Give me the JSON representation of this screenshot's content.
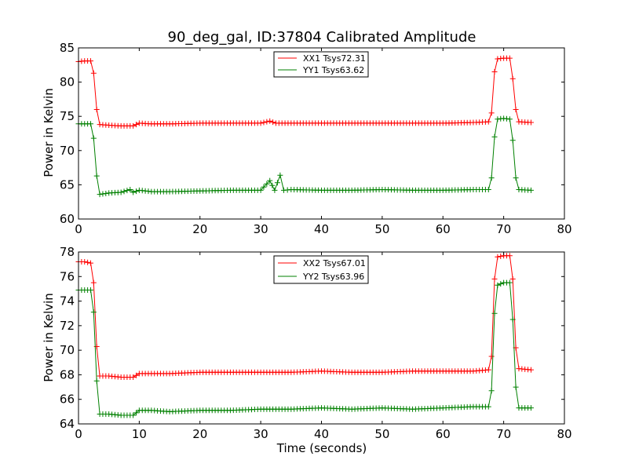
{
  "chart_data": [
    {
      "type": "line",
      "title": "90_deg_gal, ID:37804 Calibrated Amplitude",
      "xlabel": "",
      "ylabel": "Power in Kelvin",
      "xlim": [
        0,
        80
      ],
      "ylim": [
        60,
        85
      ],
      "xticks": [
        0,
        10,
        20,
        30,
        40,
        50,
        60,
        70,
        80
      ],
      "yticks": [
        60,
        65,
        70,
        75,
        80,
        85
      ],
      "grid": false,
      "legend_position": "top-center",
      "marker": "plus",
      "series": [
        {
          "name": "XX1 Tsys72.31",
          "color": "#ff0000",
          "points": [
            [
              0,
              83.0
            ],
            [
              1,
              83.1
            ],
            [
              2,
              83.1
            ],
            [
              2.5,
              81.3
            ],
            [
              3,
              76.0
            ],
            [
              3.5,
              73.8
            ],
            [
              5,
              73.7
            ],
            [
              7,
              73.6
            ],
            [
              9,
              73.6
            ],
            [
              10,
              74.0
            ],
            [
              12,
              73.9
            ],
            [
              15,
              73.9
            ],
            [
              20,
              74.0
            ],
            [
              25,
              74.0
            ],
            [
              30,
              74.0
            ],
            [
              31.5,
              74.3
            ],
            [
              32.5,
              74.0
            ],
            [
              35,
              74.0
            ],
            [
              40,
              74.0
            ],
            [
              45,
              74.0
            ],
            [
              50,
              74.0
            ],
            [
              55,
              74.0
            ],
            [
              60,
              74.0
            ],
            [
              65,
              74.1
            ],
            [
              67.5,
              74.2
            ],
            [
              68,
              75.5
            ],
            [
              68.5,
              81.5
            ],
            [
              69,
              83.4
            ],
            [
              70,
              83.5
            ],
            [
              71,
              83.5
            ],
            [
              71.5,
              80.5
            ],
            [
              72,
              76.0
            ],
            [
              72.5,
              74.2
            ],
            [
              74.5,
              74.1
            ]
          ]
        },
        {
          "name": "YY1 Tsys63.62",
          "color": "#008000",
          "points": [
            [
              0,
              73.9
            ],
            [
              1,
              73.9
            ],
            [
              2,
              73.9
            ],
            [
              2.5,
              71.8
            ],
            [
              3,
              66.3
            ],
            [
              3.5,
              63.6
            ],
            [
              5,
              63.8
            ],
            [
              7,
              63.9
            ],
            [
              8.5,
              64.3
            ],
            [
              9,
              63.9
            ],
            [
              10,
              64.2
            ],
            [
              12,
              64.0
            ],
            [
              15,
              64.0
            ],
            [
              20,
              64.1
            ],
            [
              25,
              64.2
            ],
            [
              30,
              64.2
            ],
            [
              31.5,
              65.6
            ],
            [
              32.3,
              64.2
            ],
            [
              33.2,
              66.4
            ],
            [
              33.8,
              64.2
            ],
            [
              35,
              64.3
            ],
            [
              40,
              64.2
            ],
            [
              45,
              64.2
            ],
            [
              50,
              64.3
            ],
            [
              55,
              64.2
            ],
            [
              60,
              64.2
            ],
            [
              65,
              64.3
            ],
            [
              67.5,
              64.3
            ],
            [
              68,
              66.0
            ],
            [
              68.5,
              72.0
            ],
            [
              69,
              74.6
            ],
            [
              70,
              74.7
            ],
            [
              71,
              74.6
            ],
            [
              71.5,
              71.5
            ],
            [
              72,
              66.0
            ],
            [
              72.5,
              64.3
            ],
            [
              74.5,
              64.2
            ]
          ]
        }
      ]
    },
    {
      "type": "line",
      "title": "",
      "xlabel": "Time (seconds)",
      "ylabel": "Power in Kelvin",
      "xlim": [
        0,
        80
      ],
      "ylim": [
        64,
        78
      ],
      "xticks": [
        0,
        10,
        20,
        30,
        40,
        50,
        60,
        70,
        80
      ],
      "yticks": [
        64,
        66,
        68,
        70,
        72,
        74,
        76,
        78
      ],
      "grid": false,
      "legend_position": "top-center",
      "marker": "plus",
      "series": [
        {
          "name": "XX2 Tsys67.01",
          "color": "#ff0000",
          "points": [
            [
              0,
              77.2
            ],
            [
              1,
              77.2
            ],
            [
              2,
              77.1
            ],
            [
              2.5,
              75.5
            ],
            [
              3,
              70.3
            ],
            [
              3.5,
              67.9
            ],
            [
              5,
              67.9
            ],
            [
              7,
              67.8
            ],
            [
              9,
              67.8
            ],
            [
              10,
              68.1
            ],
            [
              12,
              68.1
            ],
            [
              15,
              68.1
            ],
            [
              20,
              68.2
            ],
            [
              25,
              68.2
            ],
            [
              30,
              68.2
            ],
            [
              35,
              68.2
            ],
            [
              40,
              68.3
            ],
            [
              45,
              68.2
            ],
            [
              50,
              68.2
            ],
            [
              55,
              68.3
            ],
            [
              60,
              68.3
            ],
            [
              65,
              68.3
            ],
            [
              67.5,
              68.4
            ],
            [
              68,
              69.5
            ],
            [
              68.5,
              75.8
            ],
            [
              69,
              77.6
            ],
            [
              70,
              77.7
            ],
            [
              71,
              77.7
            ],
            [
              71.5,
              75.8
            ],
            [
              72,
              70.2
            ],
            [
              72.5,
              68.5
            ],
            [
              74.5,
              68.4
            ]
          ]
        },
        {
          "name": "YY2 Tsys63.96",
          "color": "#008000",
          "points": [
            [
              0,
              74.9
            ],
            [
              1,
              74.9
            ],
            [
              2,
              74.9
            ],
            [
              2.5,
              73.1
            ],
            [
              3,
              67.5
            ],
            [
              3.5,
              64.8
            ],
            [
              5,
              64.8
            ],
            [
              7,
              64.7
            ],
            [
              9,
              64.7
            ],
            [
              10,
              65.1
            ],
            [
              12,
              65.1
            ],
            [
              15,
              65.0
            ],
            [
              20,
              65.1
            ],
            [
              25,
              65.1
            ],
            [
              30,
              65.2
            ],
            [
              35,
              65.2
            ],
            [
              40,
              65.3
            ],
            [
              45,
              65.2
            ],
            [
              50,
              65.3
            ],
            [
              55,
              65.2
            ],
            [
              60,
              65.3
            ],
            [
              65,
              65.4
            ],
            [
              67.5,
              65.4
            ],
            [
              68,
              66.7
            ],
            [
              68.5,
              73.0
            ],
            [
              69,
              75.3
            ],
            [
              70,
              75.5
            ],
            [
              71,
              75.5
            ],
            [
              71.5,
              72.5
            ],
            [
              72,
              67.0
            ],
            [
              72.5,
              65.3
            ],
            [
              74.5,
              65.3
            ]
          ]
        }
      ]
    }
  ]
}
